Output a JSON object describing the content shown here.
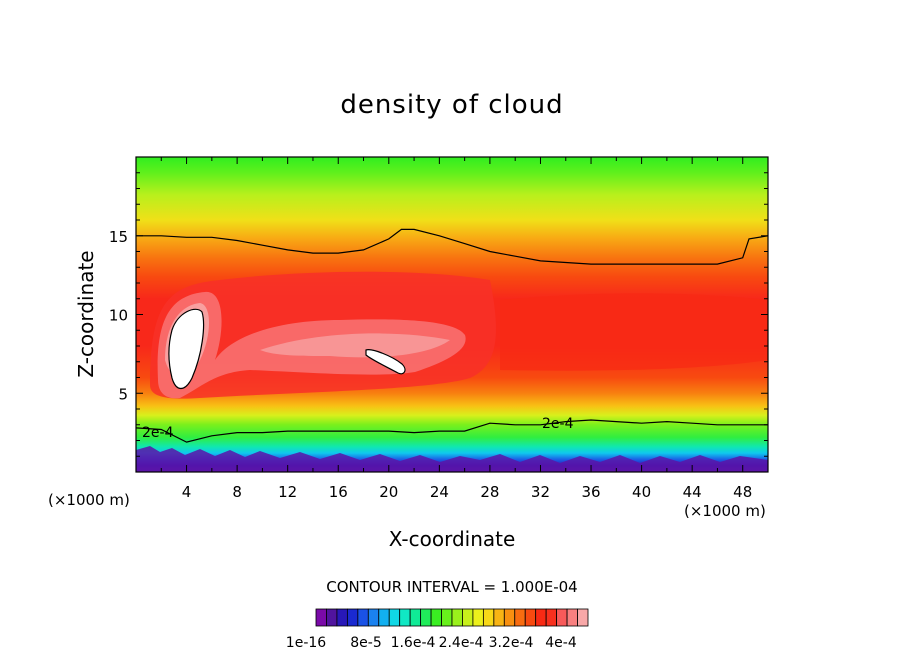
{
  "chart_data": {
    "type": "heatmap",
    "title": "density of cloud",
    "xlabel": "X-coordinate",
    "ylabel": "Z-coordinate",
    "x_unit": "(×1000 m)",
    "x_ticks": [
      4,
      8,
      12,
      16,
      20,
      24,
      28,
      32,
      36,
      40,
      44,
      48
    ],
    "y_ticks": [
      5,
      10,
      15
    ],
    "xlim": [
      0,
      50
    ],
    "ylim": [
      0,
      20
    ],
    "contour_interval_label": "CONTOUR INTERVAL = 1.000E-04",
    "contour_labels": [
      "2e-4",
      "2e-4"
    ],
    "contour_line_profiles": {
      "level_2e-4_upper": {
        "x": [
          0,
          2,
          4,
          6,
          8,
          10,
          12,
          14,
          16,
          18,
          20,
          21,
          22,
          24,
          26,
          28,
          30,
          32,
          34,
          36,
          38,
          40,
          42,
          44,
          46,
          48,
          48.5,
          50
        ],
        "z": [
          15,
          15,
          14.9,
          14.9,
          14.7,
          14.4,
          14.1,
          13.9,
          13.9,
          14.1,
          14.8,
          15.4,
          15.4,
          15.0,
          14.5,
          14.0,
          13.7,
          13.4,
          13.3,
          13.2,
          13.2,
          13.2,
          13.2,
          13.2,
          13.2,
          13.6,
          14.8,
          15.0
        ]
      },
      "level_2e-4_lower": {
        "x": [
          0,
          2,
          4,
          6,
          8,
          10,
          12,
          14,
          16,
          18,
          20,
          22,
          24,
          26,
          28,
          30,
          32,
          34,
          36,
          38,
          40,
          42,
          44,
          46,
          48,
          50
        ],
        "z": [
          2.8,
          2.7,
          1.9,
          2.3,
          2.5,
          2.5,
          2.6,
          2.6,
          2.6,
          2.6,
          2.6,
          2.5,
          2.6,
          2.6,
          3.1,
          3.0,
          3.0,
          3.2,
          3.3,
          3.2,
          3.1,
          3.2,
          3.1,
          3.0,
          3.0,
          3.0
        ]
      }
    },
    "colorbar": {
      "tick_labels": [
        "1e-16",
        "8e-5",
        "1.6e-4",
        "2.4e-4",
        "3.2e-4",
        "4e-4"
      ],
      "colors": [
        "#7a0aa8",
        "#50149e",
        "#2818b8",
        "#1a2ad0",
        "#1a52e6",
        "#1a82f0",
        "#12b0f0",
        "#10d8e6",
        "#10e8c4",
        "#10ea96",
        "#20ec5a",
        "#3aee22",
        "#68f01c",
        "#9af01c",
        "#c8f01c",
        "#ecf01c",
        "#f8d818",
        "#f8b414",
        "#f89010",
        "#f86c10",
        "#f84a10",
        "#f82a14",
        "#f8301e",
        "#f85a5a",
        "#f88080",
        "#f8a8a8"
      ]
    }
  }
}
